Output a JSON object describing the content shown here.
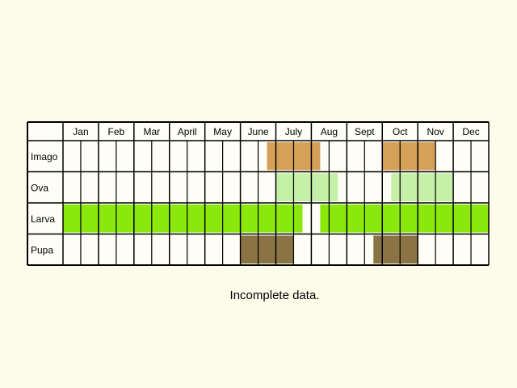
{
  "chart_data": {
    "type": "table",
    "months": [
      "Jan",
      "Feb",
      "Mar",
      "April",
      "May",
      "June",
      "July",
      "Aug",
      "Sept",
      "Oct",
      "Nov",
      "Dec"
    ],
    "subdivisions_per_month": 2,
    "stages": [
      {
        "name": "Imago",
        "color": "#d5a058",
        "active": [
          [
            11.5,
            14.5
          ],
          [
            18,
            21
          ]
        ]
      },
      {
        "name": "Ova",
        "color": "#c6f0a8",
        "active": [
          [
            12,
            15.5
          ],
          [
            18.5,
            22
          ]
        ]
      },
      {
        "name": "Larva",
        "color": "#8ae80c",
        "active": [
          [
            0,
            13.5
          ],
          [
            14.5,
            24
          ]
        ]
      },
      {
        "name": "Pupa",
        "color": "#8b7443",
        "active": [
          [
            10,
            13
          ],
          [
            17.5,
            20
          ]
        ]
      }
    ]
  },
  "caption": "Incomplete data."
}
